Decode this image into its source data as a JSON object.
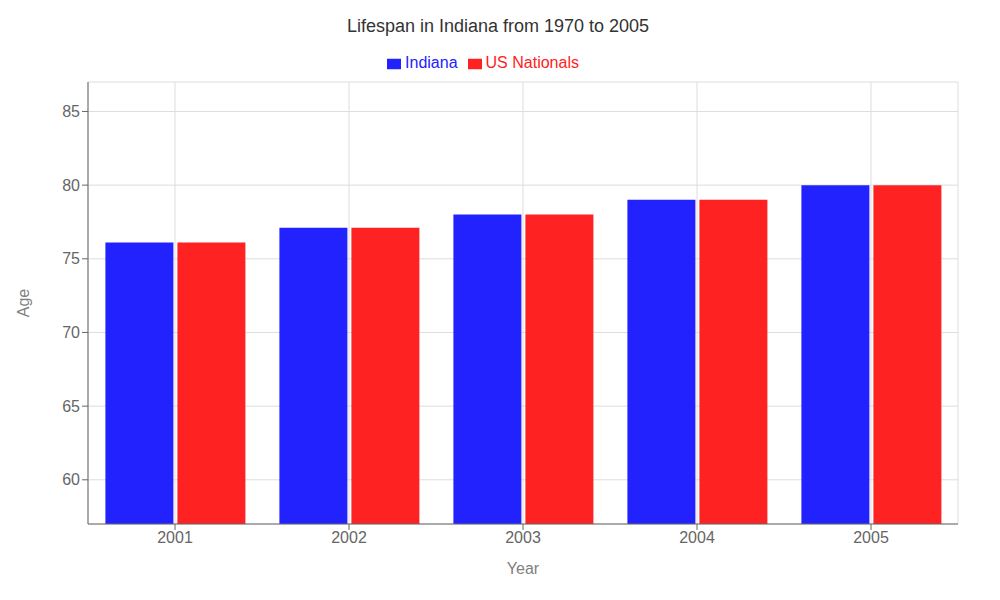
{
  "chart_data": {
    "type": "bar",
    "title": "Lifespan in Indiana from 1970 to 2005",
    "x_label": "Year",
    "y_label": "Age",
    "categories": [
      "2001",
      "2002",
      "2003",
      "2004",
      "2005"
    ],
    "series": [
      {
        "name": "Indiana",
        "color": "#2222ff",
        "values": [
          76.1,
          77.1,
          78.0,
          79.0,
          80.0
        ]
      },
      {
        "name": "US Nationals",
        "color": "#ff2222",
        "values": [
          76.1,
          77.1,
          78.0,
          79.0,
          80.0
        ]
      }
    ],
    "ylim": [
      57,
      87
    ],
    "yticks": [
      60,
      65,
      70,
      75,
      80,
      85
    ],
    "grid": true,
    "legend": "top"
  }
}
